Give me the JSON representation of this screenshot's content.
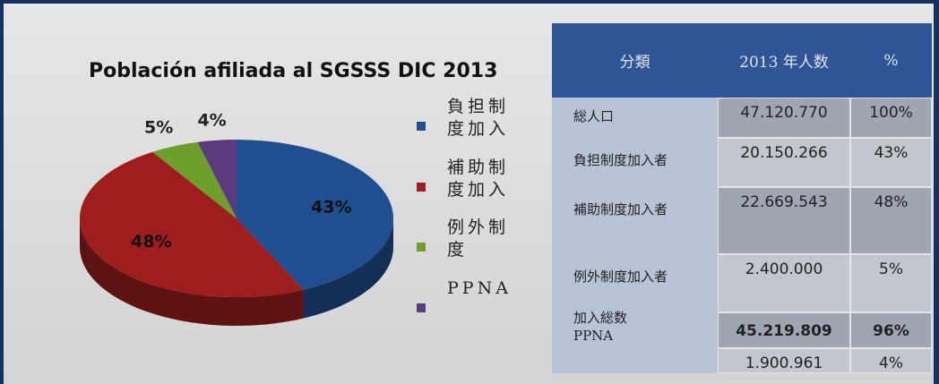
{
  "chart_data": {
    "type": "pie",
    "title": "Población afiliada al SGSSS DIC 2013",
    "categories": [
      "負担制度加入",
      "補助制度加入",
      "例外制度",
      "PPNA"
    ],
    "values": [
      43,
      48,
      5,
      4
    ],
    "value_labels": [
      "43%",
      "48%",
      "5%",
      "4%"
    ],
    "colors": [
      "#1f4f8f",
      "#9e1e1e",
      "#6e9e2c",
      "#5b3a7e"
    ],
    "legend": "right"
  },
  "table": {
    "header": [
      "分類",
      "2013 年人数",
      "%"
    ],
    "rows": [
      [
        "総人口",
        "47.120.770",
        "100%"
      ],
      [
        "負担制度加入者",
        "20.150.266",
        "43%"
      ],
      [
        "補助制度加入者",
        "22.669.543",
        "48%"
      ],
      [
        "例外制度加入者",
        "2.400.000",
        "5%"
      ],
      [
        "加入総数",
        "45.219.809",
        "96%"
      ],
      [
        "PPNA",
        "1.900.961",
        "4%"
      ]
    ]
  }
}
